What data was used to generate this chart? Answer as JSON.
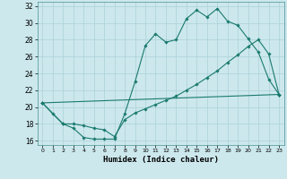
{
  "xlabel": "Humidex (Indice chaleur)",
  "bg_color": "#cce8ed",
  "grid_color": "#b0d4da",
  "line_color": "#1a7a6e",
  "xlim": [
    -0.5,
    23.5
  ],
  "ylim": [
    15.5,
    32.5
  ],
  "xticks": [
    0,
    1,
    2,
    3,
    4,
    5,
    6,
    7,
    8,
    9,
    10,
    11,
    12,
    13,
    14,
    15,
    16,
    17,
    18,
    19,
    20,
    21,
    22,
    23
  ],
  "yticks": [
    16,
    18,
    20,
    22,
    24,
    26,
    28,
    30,
    32
  ],
  "curve1_x": [
    0,
    1,
    2,
    3,
    4,
    5,
    6,
    7,
    8,
    9,
    10,
    11,
    12,
    13,
    14,
    15,
    16,
    17,
    18,
    19,
    20,
    21,
    22,
    23
  ],
  "curve1_y": [
    20.5,
    19.2,
    18.0,
    17.5,
    16.4,
    16.2,
    16.2,
    16.2,
    19.2,
    23.0,
    27.3,
    28.7,
    27.7,
    28.0,
    30.5,
    31.5,
    30.7,
    31.7,
    30.2,
    29.7,
    28.1,
    26.5,
    23.3,
    21.5
  ],
  "curve2_x": [
    0,
    2,
    3,
    4,
    5,
    6,
    7,
    8,
    9,
    10,
    11,
    12,
    13,
    14,
    15,
    16,
    17,
    18,
    19,
    20,
    21,
    22,
    23
  ],
  "curve2_y": [
    20.5,
    18.0,
    18.0,
    17.8,
    17.5,
    17.3,
    16.5,
    18.5,
    19.3,
    19.8,
    20.3,
    20.8,
    21.3,
    22.0,
    22.7,
    23.5,
    24.3,
    25.3,
    26.2,
    27.2,
    28.0,
    26.3,
    21.5
  ],
  "curve3_x": [
    0,
    23
  ],
  "curve3_y": [
    20.5,
    21.5
  ]
}
